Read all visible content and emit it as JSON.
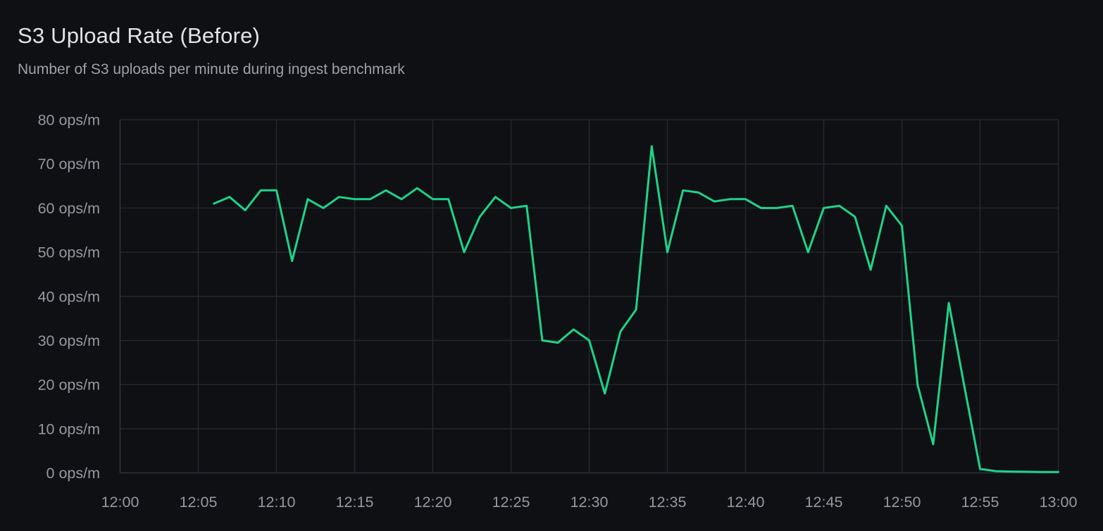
{
  "panel": {
    "title": "S3 Upload Rate (Before)",
    "subtitle": "Number of S3 uploads per minute during ingest benchmark"
  },
  "colors": {
    "background": "#0e1013",
    "line": "#1fd389",
    "grid": "#24272c",
    "axis": "#30343a",
    "title_text": "#e2e3e5",
    "subtitle_text": "#9da0a6",
    "tick_text": "#95989e"
  },
  "chart_data": {
    "type": "line",
    "title": "S3 Upload Rate (Before)",
    "subtitle": "Number of S3 uploads per minute during ingest benchmark",
    "xlabel": "",
    "ylabel": "",
    "x_unit": "minutes after 12:00",
    "y_unit": "ops/m",
    "xlim": [
      0,
      60
    ],
    "ylim": [
      0,
      80
    ],
    "grid": true,
    "legend": false,
    "series_name": "S3 uploads per minute",
    "series_color": "#1fd389",
    "x_ticks": [
      {
        "minute": 0,
        "label": "12:00"
      },
      {
        "minute": 5,
        "label": "12:05"
      },
      {
        "minute": 10,
        "label": "12:10"
      },
      {
        "minute": 15,
        "label": "12:15"
      },
      {
        "minute": 20,
        "label": "12:20"
      },
      {
        "minute": 25,
        "label": "12:25"
      },
      {
        "minute": 30,
        "label": "12:30"
      },
      {
        "minute": 35,
        "label": "12:35"
      },
      {
        "minute": 40,
        "label": "12:40"
      },
      {
        "minute": 45,
        "label": "12:45"
      },
      {
        "minute": 50,
        "label": "12:50"
      },
      {
        "minute": 55,
        "label": "12:55"
      },
      {
        "minute": 60,
        "label": "13:00"
      }
    ],
    "y_ticks": [
      {
        "value": 0,
        "label": "0 ops/m"
      },
      {
        "value": 10,
        "label": "10 ops/m"
      },
      {
        "value": 20,
        "label": "20 ops/m"
      },
      {
        "value": 30,
        "label": "30 ops/m"
      },
      {
        "value": 40,
        "label": "40 ops/m"
      },
      {
        "value": 50,
        "label": "50 ops/m"
      },
      {
        "value": 60,
        "label": "60 ops/m"
      },
      {
        "value": 70,
        "label": "70 ops/m"
      },
      {
        "value": 80,
        "label": "80 ops/m"
      }
    ],
    "points": [
      {
        "time": "12:06",
        "minute": 6,
        "value": 61
      },
      {
        "time": "12:07",
        "minute": 7,
        "value": 62.5
      },
      {
        "time": "12:08",
        "minute": 8,
        "value": 59.5
      },
      {
        "time": "12:09",
        "minute": 9,
        "value": 64
      },
      {
        "time": "12:10",
        "minute": 10,
        "value": 64
      },
      {
        "time": "12:11",
        "minute": 11,
        "value": 48
      },
      {
        "time": "12:12",
        "minute": 12,
        "value": 62
      },
      {
        "time": "12:13",
        "minute": 13,
        "value": 60
      },
      {
        "time": "12:14",
        "minute": 14,
        "value": 62.5
      },
      {
        "time": "12:15",
        "minute": 15,
        "value": 62
      },
      {
        "time": "12:16",
        "minute": 16,
        "value": 62
      },
      {
        "time": "12:17",
        "minute": 17,
        "value": 64
      },
      {
        "time": "12:18",
        "minute": 18,
        "value": 62
      },
      {
        "time": "12:19",
        "minute": 19,
        "value": 64.5
      },
      {
        "time": "12:20",
        "minute": 20,
        "value": 62
      },
      {
        "time": "12:21",
        "minute": 21,
        "value": 62
      },
      {
        "time": "12:22",
        "minute": 22,
        "value": 50
      },
      {
        "time": "12:23",
        "minute": 23,
        "value": 58
      },
      {
        "time": "12:24",
        "minute": 24,
        "value": 62.5
      },
      {
        "time": "12:25",
        "minute": 25,
        "value": 60
      },
      {
        "time": "12:26",
        "minute": 26,
        "value": 60.5
      },
      {
        "time": "12:27",
        "minute": 27,
        "value": 30
      },
      {
        "time": "12:28",
        "minute": 28,
        "value": 29.5
      },
      {
        "time": "12:29",
        "minute": 29,
        "value": 32.5
      },
      {
        "time": "12:30",
        "minute": 30,
        "value": 30
      },
      {
        "time": "12:31",
        "minute": 31,
        "value": 18
      },
      {
        "time": "12:32",
        "minute": 32,
        "value": 32
      },
      {
        "time": "12:33",
        "minute": 33,
        "value": 37
      },
      {
        "time": "12:34",
        "minute": 34,
        "value": 74
      },
      {
        "time": "12:35",
        "minute": 35,
        "value": 50
      },
      {
        "time": "12:36",
        "minute": 36,
        "value": 64
      },
      {
        "time": "12:37",
        "minute": 37,
        "value": 63.5
      },
      {
        "time": "12:38",
        "minute": 38,
        "value": 61.5
      },
      {
        "time": "12:39",
        "minute": 39,
        "value": 62
      },
      {
        "time": "12:40",
        "minute": 40,
        "value": 62
      },
      {
        "time": "12:41",
        "minute": 41,
        "value": 60
      },
      {
        "time": "12:42",
        "minute": 42,
        "value": 60
      },
      {
        "time": "12:43",
        "minute": 43,
        "value": 60.5
      },
      {
        "time": "12:44",
        "minute": 44,
        "value": 50
      },
      {
        "time": "12:45",
        "minute": 45,
        "value": 60
      },
      {
        "time": "12:46",
        "minute": 46,
        "value": 60.5
      },
      {
        "time": "12:47",
        "minute": 47,
        "value": 58
      },
      {
        "time": "12:48",
        "minute": 48,
        "value": 46
      },
      {
        "time": "12:49",
        "minute": 49,
        "value": 60.5
      },
      {
        "time": "12:50",
        "minute": 50,
        "value": 56
      },
      {
        "time": "12:51",
        "minute": 51,
        "value": 20
      },
      {
        "time": "12:52",
        "minute": 52,
        "value": 6.5
      },
      {
        "time": "12:53",
        "minute": 53,
        "value": 38.5
      },
      {
        "time": "12:54",
        "minute": 54,
        "value": 19.5
      },
      {
        "time": "12:55",
        "minute": 55,
        "value": 0.9
      },
      {
        "time": "12:56",
        "minute": 56,
        "value": 0.4
      },
      {
        "time": "12:57",
        "minute": 57,
        "value": 0.3
      },
      {
        "time": "12:58",
        "minute": 58,
        "value": 0.25
      },
      {
        "time": "12:59",
        "minute": 59,
        "value": 0.2
      },
      {
        "time": "13:00",
        "minute": 60,
        "value": 0.2
      }
    ]
  }
}
